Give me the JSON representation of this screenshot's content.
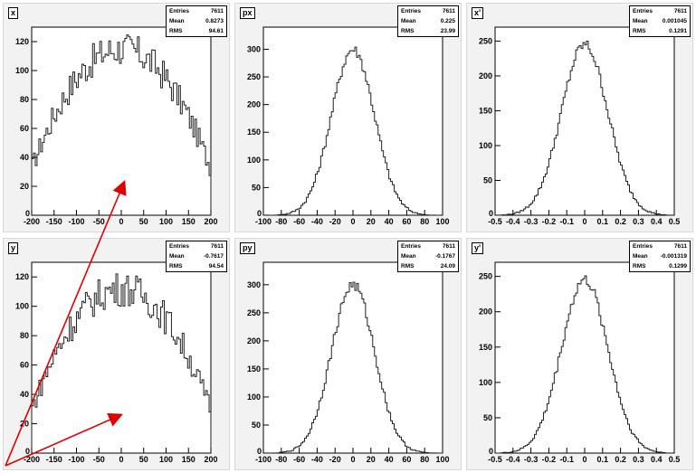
{
  "chart_data": [
    {
      "type": "bar",
      "title": "x",
      "stats": {
        "entries": "7611",
        "mean": "0.8273",
        "rms": "94.61"
      },
      "xlim": [
        -200,
        200
      ],
      "ylim": [
        0,
        130
      ],
      "xticks": [
        "-200",
        "-150",
        "-100",
        "-50",
        "0",
        "50",
        "100",
        "150",
        "200"
      ],
      "yticks": [
        "20",
        "40",
        "60",
        "80",
        "100",
        "120"
      ],
      "shape": "flat",
      "peak": 115,
      "edge": 28,
      "noise": 12
    },
    {
      "type": "bar",
      "title": "px",
      "stats": {
        "entries": "7611",
        "mean": "0.225",
        "rms": "23.99"
      },
      "xlim": [
        -100,
        100
      ],
      "ylim": [
        0,
        340
      ],
      "xticks": [
        "-100",
        "-80",
        "-60",
        "-40",
        "-20",
        "0",
        "20",
        "40",
        "60",
        "80",
        "100"
      ],
      "yticks": [
        "50",
        "100",
        "150",
        "200",
        "250",
        "300"
      ],
      "shape": "gauss",
      "peak": 300,
      "sigma": 24,
      "noise": 10
    },
    {
      "type": "bar",
      "title": "x'",
      "stats": {
        "entries": "7611",
        "mean": "0.001045",
        "rms": "0.1291"
      },
      "xlim": [
        -0.5,
        0.5
      ],
      "ylim": [
        0,
        270
      ],
      "xticks": [
        "-0.5",
        "-0.4",
        "-0.3",
        "-0.2",
        "-0.1",
        "0",
        "0.1",
        "0.2",
        "0.3",
        "0.4",
        "0.5"
      ],
      "yticks": [
        "50",
        "100",
        "150",
        "200",
        "250"
      ],
      "shape": "gauss",
      "peak": 245,
      "sigma": 0.13,
      "noise": 8
    },
    {
      "type": "bar",
      "title": "y",
      "stats": {
        "entries": "7611",
        "mean": "-0.7617",
        "rms": "94.54"
      },
      "xlim": [
        -200,
        200
      ],
      "ylim": [
        0,
        130
      ],
      "xticks": [
        "-200",
        "-150",
        "-100",
        "-50",
        "0",
        "50",
        "100",
        "150",
        "200"
      ],
      "yticks": [
        "20",
        "40",
        "60",
        "80",
        "100",
        "120"
      ],
      "shape": "flat",
      "peak": 112,
      "edge": 25,
      "noise": 12
    },
    {
      "type": "bar",
      "title": "py",
      "stats": {
        "entries": "7611",
        "mean": "-0.1767",
        "rms": "24.09"
      },
      "xlim": [
        -100,
        100
      ],
      "ylim": [
        0,
        340
      ],
      "xticks": [
        "-100",
        "-80",
        "-60",
        "-40",
        "-20",
        "0",
        "20",
        "40",
        "60",
        "80",
        "100"
      ],
      "yticks": [
        "50",
        "100",
        "150",
        "200",
        "250",
        "300"
      ],
      "shape": "gauss",
      "peak": 300,
      "sigma": 24,
      "noise": 10
    },
    {
      "type": "bar",
      "title": "y'",
      "stats": {
        "entries": "7611",
        "mean": "-0.001319",
        "rms": "0.1299"
      },
      "xlim": [
        -0.5,
        0.5
      ],
      "ylim": [
        0,
        270
      ],
      "xticks": [
        "-0.5",
        "-0.4",
        "-0.3",
        "-0.2",
        "-0.1",
        "0",
        "0.1",
        "0.2",
        "0.3",
        "0.4",
        "0.5"
      ],
      "yticks": [
        "50",
        "100",
        "150",
        "200",
        "250"
      ],
      "shape": "gauss",
      "peak": 245,
      "sigma": 0.13,
      "noise": 8
    }
  ],
  "labels": {
    "entries": "Entries",
    "mean": "Mean",
    "rms": "RMS"
  },
  "colors": {
    "pad": "#f2f2f2",
    "hist": "#202020",
    "arrow": "#e00000"
  }
}
